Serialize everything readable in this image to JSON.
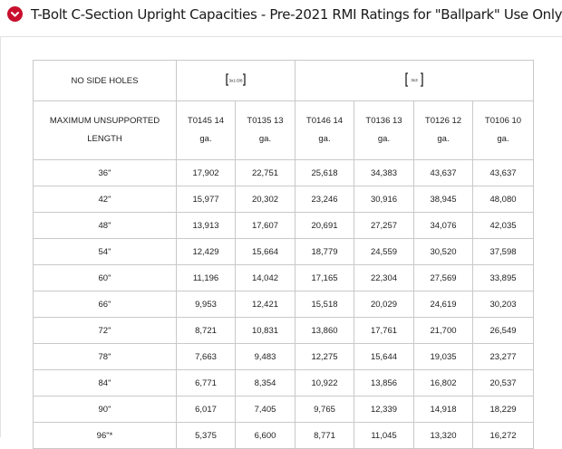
{
  "header": {
    "title": "T-Bolt C-Section Upright Capacities - Pre-2021 RMI Ratings for \"Ballpark\" Use Only",
    "icon": "chevron-down-icon",
    "accent": "#c8102e"
  },
  "table": {
    "corner_label": "NO SIDE HOLES",
    "group_icons": [
      {
        "label": "3x1-5/8",
        "icon": "c-section-icon"
      },
      {
        "label": "3x3",
        "icon": "c-section-icon"
      }
    ],
    "length_header": [
      "MAXIMUM UNSUPPORTED",
      "LENGTH"
    ],
    "columns": [
      [
        "T0145 14",
        "ga."
      ],
      [
        "T0135 13",
        "ga."
      ],
      [
        "T0146 14",
        "ga."
      ],
      [
        "T0136 13",
        "ga."
      ],
      [
        "T0126 12",
        "ga."
      ],
      [
        "T0106 10",
        "ga."
      ]
    ],
    "rows": [
      {
        "length": "36\"",
        "values": [
          "17,902",
          "22,751",
          "25,618",
          "34,383",
          "43,637",
          "43,637"
        ]
      },
      {
        "length": "42\"",
        "values": [
          "15,977",
          "20,302",
          "23,246",
          "30,916",
          "38,945",
          "48,080"
        ]
      },
      {
        "length": "48\"",
        "values": [
          "13,913",
          "17,607",
          "20,691",
          "27,257",
          "34,076",
          "42,035"
        ]
      },
      {
        "length": "54\"",
        "values": [
          "12,429",
          "15,664",
          "18,779",
          "24,559",
          "30,520",
          "37,598"
        ]
      },
      {
        "length": "60\"",
        "values": [
          "11,196",
          "14,042",
          "17,165",
          "22,304",
          "27,569",
          "33,895"
        ]
      },
      {
        "length": "66\"",
        "values": [
          "9,953",
          "12,421",
          "15,518",
          "20,029",
          "24,619",
          "30,203"
        ]
      },
      {
        "length": "72\"",
        "values": [
          "8,721",
          "10,831",
          "13,860",
          "17,761",
          "21,700",
          "26,549"
        ]
      },
      {
        "length": "78\"",
        "values": [
          "7,663",
          "9,483",
          "12,275",
          "15,644",
          "19,035",
          "23,277"
        ]
      },
      {
        "length": "84\"",
        "values": [
          "6,771",
          "8,354",
          "10,922",
          "13,856",
          "16,802",
          "20,537"
        ]
      },
      {
        "length": "90\"",
        "values": [
          "6,017",
          "7,405",
          "9,765",
          "12,339",
          "14,918",
          "18,229"
        ]
      },
      {
        "length": "96\"*",
        "values": [
          "5,375",
          "6,600",
          "8,771",
          "11,045",
          "13,320",
          "16,272"
        ]
      }
    ]
  }
}
